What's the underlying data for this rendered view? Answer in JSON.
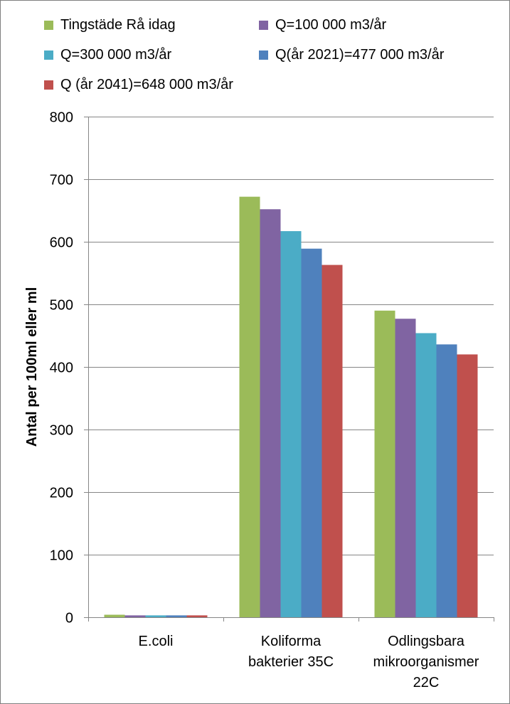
{
  "chart_data": {
    "type": "bar",
    "title": "",
    "xlabel": "",
    "ylabel": "Antal per 100ml eller ml",
    "ylim": [
      0,
      800
    ],
    "yticks": [
      0,
      100,
      200,
      300,
      400,
      500,
      600,
      700,
      800
    ],
    "grid": true,
    "legend_position": "top",
    "categories": [
      [
        "E.coli"
      ],
      [
        "Koliforma",
        "bakterier 35C"
      ],
      [
        "Odlingsbara",
        "mikroorganismer",
        "22C"
      ]
    ],
    "series": [
      {
        "name": "Tingstäde Rå idag",
        "color": "#9bbb59",
        "values": [
          4,
          672,
          490
        ]
      },
      {
        "name": "Q=100 000 m3/år",
        "color": "#8064a2",
        "values": [
          3,
          652,
          477
        ]
      },
      {
        "name": "Q=300 000 m3/år",
        "color": "#4bacc6",
        "values": [
          3,
          617,
          454
        ]
      },
      {
        "name": "Q(år 2021)=477 000 m3/år",
        "color": "#4f81bd",
        "values": [
          3,
          589,
          436
        ]
      },
      {
        "name": "Q (år 2041)=648 000 m3/år",
        "color": "#c0504d",
        "values": [
          3,
          563,
          420
        ]
      }
    ]
  }
}
